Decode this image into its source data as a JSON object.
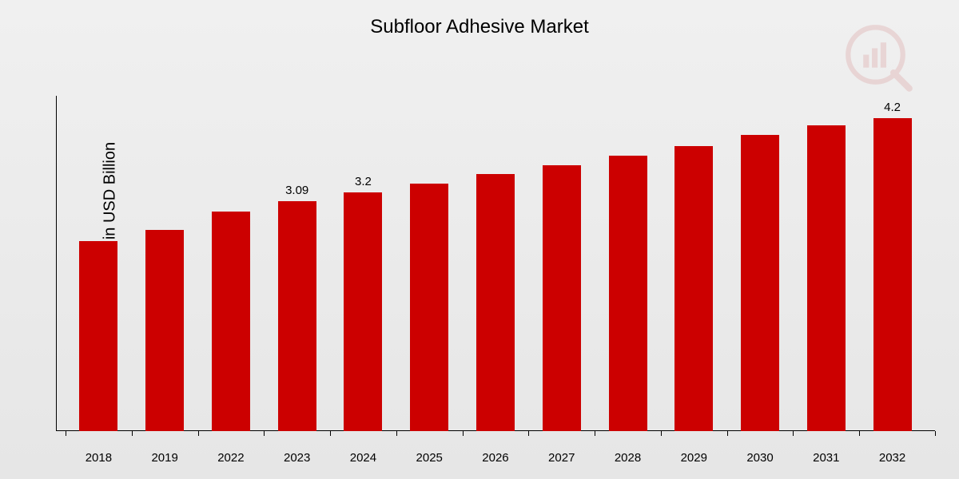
{
  "chart": {
    "type": "bar",
    "title": "Subfloor Adhesive Market",
    "title_fontsize": 24,
    "y_axis_label": "Market Value in USD Billion",
    "y_axis_label_fontsize": 20,
    "categories": [
      "2018",
      "2019",
      "2022",
      "2023",
      "2024",
      "2025",
      "2026",
      "2027",
      "2028",
      "2029",
      "2030",
      "2031",
      "2032"
    ],
    "values": [
      2.55,
      2.7,
      2.95,
      3.09,
      3.2,
      3.32,
      3.45,
      3.57,
      3.7,
      3.83,
      3.97,
      4.1,
      4.2
    ],
    "value_labels": [
      "",
      "",
      "",
      "3.09",
      "3.2",
      "",
      "",
      "",
      "",
      "",
      "",
      "",
      "4.2"
    ],
    "bar_color": "#cc0000",
    "background_gradient_top": "#f0f0f0",
    "background_gradient_bottom": "#e6e6e6",
    "axis_color": "#000000",
    "text_color": "#000000",
    "x_label_fontsize": 15,
    "value_label_fontsize": 15,
    "y_max": 4.5,
    "y_min": 0,
    "bar_width_ratio": 0.58,
    "watermark_opacity": 0.1
  }
}
